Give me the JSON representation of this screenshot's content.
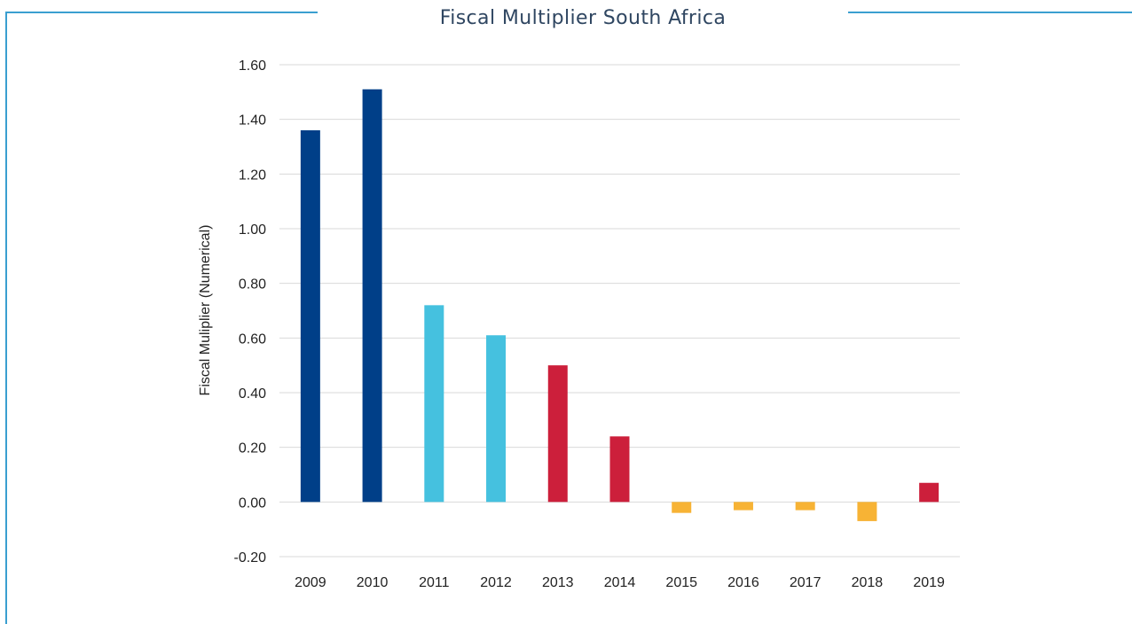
{
  "colors": {
    "frame": "#3a9fd0",
    "grid": "#d9d9d9",
    "dark_blue": "#003f88",
    "light_blue": "#45c1df",
    "red": "#cc1f3b",
    "yellow": "#f7b335"
  },
  "chart_data": {
    "type": "bar",
    "title": "Fiscal Multiplier South Africa",
    "xlabel": "",
    "ylabel": "Fiscal Muliplier (Numerical)",
    "ylim": [
      -0.2,
      1.6
    ],
    "yticks": [
      "-0.20",
      "0.00",
      "0.20",
      "0.40",
      "0.60",
      "0.80",
      "1.00",
      "1.20",
      "1.40",
      "1.60"
    ],
    "ytick_values": [
      -0.2,
      0,
      0.2,
      0.4,
      0.6,
      0.8,
      1.0,
      1.2,
      1.4,
      1.6
    ],
    "grid": true,
    "legend": "none",
    "categories": [
      "2009",
      "2010",
      "2011",
      "2012",
      "2013",
      "2014",
      "2015",
      "2016",
      "2017",
      "2018",
      "2019"
    ],
    "values": [
      1.36,
      1.51,
      0.72,
      0.61,
      0.5,
      0.24,
      -0.04,
      -0.03,
      -0.03,
      -0.07,
      0.07
    ],
    "bar_colors": [
      "#003f88",
      "#003f88",
      "#45c1df",
      "#45c1df",
      "#cc1f3b",
      "#cc1f3b",
      "#f7b335",
      "#f7b335",
      "#f7b335",
      "#f7b335",
      "#cc1f3b"
    ]
  }
}
